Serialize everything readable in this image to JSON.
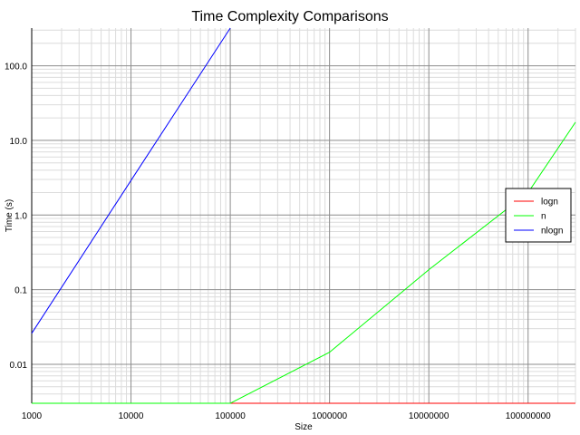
{
  "chart_data": {
    "type": "line",
    "title": "Time Complexity Comparisons",
    "xlabel": "Size",
    "ylabel": "Time (s)",
    "xscale": "log",
    "yscale": "log",
    "xlim": [
      1000,
      300000000
    ],
    "ylim": [
      0.003,
      320
    ],
    "x_ticks": [
      {
        "value": 1000,
        "label": "1000"
      },
      {
        "value": 10000,
        "label": "10000"
      },
      {
        "value": 100000,
        "label": "100000"
      },
      {
        "value": 1000000,
        "label": "1000000"
      },
      {
        "value": 10000000,
        "label": "10000000"
      },
      {
        "value": 100000000,
        "label": "100000000"
      }
    ],
    "y_ticks": [
      {
        "value": 0.01,
        "label": "0.01"
      },
      {
        "value": 0.1,
        "label": "0.1"
      },
      {
        "value": 1,
        "label": "1.0"
      },
      {
        "value": 10,
        "label": "10.0"
      },
      {
        "value": 100,
        "label": "100.0"
      }
    ],
    "grid": true,
    "legend_position": "right",
    "series": [
      {
        "name": "logn",
        "color": "#ff0000",
        "x": [
          100000,
          1000000,
          10000000,
          100000000,
          300000000
        ],
        "y": [
          0.003,
          0.003,
          0.003,
          0.003,
          0.003
        ]
      },
      {
        "name": "n",
        "color": "#00ff00",
        "x": [
          1000,
          10000,
          100000,
          1000000,
          10000000,
          100000000,
          300000000
        ],
        "y": [
          0.003,
          0.003,
          0.003,
          0.0145,
          0.185,
          2.0,
          17.5
        ]
      },
      {
        "name": "nlogn",
        "color": "#0000ff",
        "x": [
          1000,
          10000,
          100000
        ],
        "y": [
          0.026,
          2.9,
          320
        ]
      }
    ]
  }
}
